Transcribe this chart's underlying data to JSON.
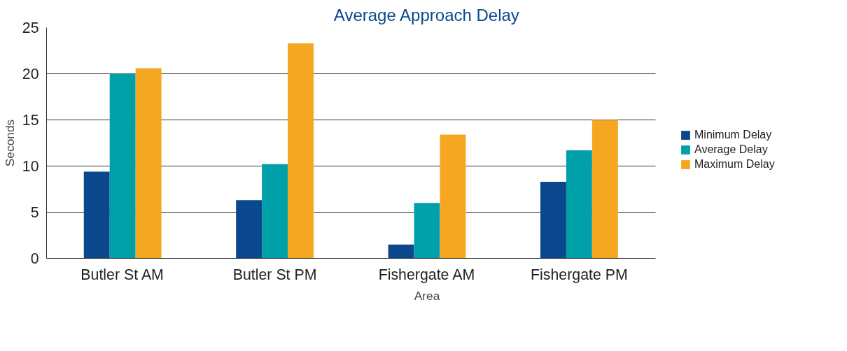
{
  "chart_data": {
    "type": "bar",
    "title": "Average Approach Delay",
    "xlabel": "Area",
    "ylabel": "Seconds",
    "categories": [
      "Butler St AM",
      "Butler St PM",
      "Fishergate AM",
      "Fishergate PM"
    ],
    "series": [
      {
        "name": "Minimum Delay",
        "color": "#0b478c",
        "values": [
          9.4,
          6.3,
          1.5,
          8.3
        ]
      },
      {
        "name": "Average Delay",
        "color": "#00a0ab",
        "values": [
          20.0,
          10.2,
          6.0,
          11.7
        ]
      },
      {
        "name": "Maximum Delay",
        "color": "#f6a722",
        "values": [
          20.6,
          23.3,
          13.4,
          15.0
        ]
      }
    ],
    "ylim": [
      0,
      25
    ],
    "yticks": [
      0,
      5,
      10,
      15,
      20,
      25
    ],
    "grid": "y",
    "legend": "right"
  }
}
